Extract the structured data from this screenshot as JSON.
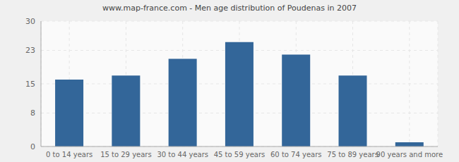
{
  "chart_data": {
    "type": "bar",
    "title": "www.map-france.com - Men age distribution of Poudenas in 2007",
    "categories": [
      "0 to 14 years",
      "15 to 29 years",
      "30 to 44 years",
      "45 to 59 years",
      "60 to 74 years",
      "75 to 89 years",
      "90 years and more"
    ],
    "values": [
      16,
      17,
      21,
      25,
      22,
      17,
      1
    ],
    "color": "#336699",
    "ylim": [
      0,
      30
    ],
    "yticks": [
      0,
      8,
      15,
      23,
      30
    ],
    "grid": true
  }
}
